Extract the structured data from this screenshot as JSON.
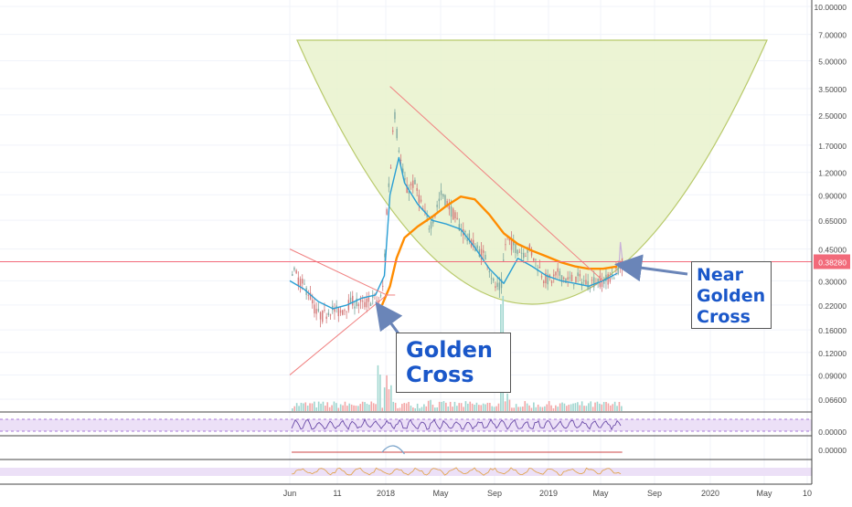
{
  "chart_data": {
    "type": "line",
    "y_scale": "log",
    "ylim": [
      0.05,
      10.0
    ],
    "y_ticks": [
      "10.00000",
      "7.00000",
      "5.00000",
      "3.50000",
      "2.50000",
      "1.70000",
      "1.20000",
      "0.90000",
      "0.65000",
      "0.45000",
      "0.30000",
      "0.22000",
      "0.16000",
      "0.12000",
      "0.09000",
      "0.06600"
    ],
    "x_ticks": [
      "Jun",
      "11",
      "2018",
      "May",
      "Sep",
      "2019",
      "May",
      "Sep",
      "2020",
      "May",
      "10"
    ],
    "price_marker": {
      "value": 0.3828,
      "label": "0.38280",
      "color": "#f26a7a"
    },
    "series": [
      {
        "name": "",
        "color": "#2a9fd4",
        "x": [
          "2017-06",
          "2017-07",
          "2017-08",
          "2017-09",
          "2017-10",
          "2017-11",
          "2017-12",
          "2017-12-20",
          "2018-01",
          "2018-01-20",
          "2018-02",
          "2018-03",
          "2018-04",
          "2018-05",
          "2018-06",
          "2018-07",
          "2018-08",
          "2018-09",
          "2018-10",
          "2018-11",
          "2018-12",
          "2019-01",
          "2019-02",
          "2019-03",
          "2019-04",
          "2019-05"
        ],
        "values": [
          0.3,
          0.27,
          0.23,
          0.21,
          0.22,
          0.24,
          0.25,
          0.32,
          0.9,
          1.45,
          1.05,
          0.8,
          0.65,
          0.62,
          0.58,
          0.46,
          0.35,
          0.29,
          0.4,
          0.36,
          0.32,
          0.3,
          0.29,
          0.28,
          0.3,
          0.33
        ]
      },
      {
        "name": "",
        "color": "#ff8c00",
        "x": [
          "2017-12-15",
          "2018-01",
          "2018-01-15",
          "2018-02",
          "2018-03",
          "2018-04",
          "2018-05",
          "2018-06",
          "2018-07",
          "2018-08",
          "2018-09",
          "2018-10",
          "2018-11",
          "2018-12",
          "2019-01",
          "2019-02",
          "2019-03",
          "2019-04",
          "2019-05"
        ],
        "values": [
          0.22,
          0.28,
          0.4,
          0.52,
          0.6,
          0.68,
          0.78,
          0.88,
          0.85,
          0.7,
          0.55,
          0.48,
          0.44,
          0.41,
          0.38,
          0.36,
          0.35,
          0.35,
          0.36
        ]
      }
    ],
    "trendlines": [
      {
        "color": "#f08080",
        "from": {
          "x": "2017-06",
          "y": 0.45
        },
        "to": {
          "x": "2017-12-25",
          "y": 0.25
        }
      },
      {
        "color": "#f08080",
        "from": {
          "x": "2017-06",
          "y": 0.09
        },
        "to": {
          "x": "2017-12-25",
          "y": 0.25
        }
      },
      {
        "color": "#f08080",
        "from": {
          "x": "2018-01",
          "y": 3.6
        },
        "to": {
          "x": "2019-04",
          "y": 0.3
        }
      }
    ],
    "annotations": [
      {
        "lines": [
          "Golden",
          "Cross"
        ],
        "color": "#1a57c9",
        "at": "2017-12"
      },
      {
        "lines": [
          "Near",
          "Golden",
          "Cross"
        ],
        "color": "#1a57c9",
        "at": "2019-05"
      }
    ],
    "indicator_panels": [
      {
        "tick_label": "0.00000"
      },
      {
        "tick_label": "0.00000"
      },
      {
        "tick_label": ""
      }
    ],
    "grid": true,
    "legend": "none"
  },
  "colors": {
    "background": "#ffffff",
    "grid": "#f0f3fa",
    "axis_text": "#4a4a4a",
    "cup_fill": "#e9f2cc",
    "cup_stroke": "#b8c96a",
    "candle_up": "#7fa8a0",
    "candle_down": "#d47a7a",
    "volume_up": "#9fd6cf",
    "volume_down": "#f3a7a7",
    "rsi_band": "#ece0f7",
    "rsi_line": "#6a4aa8"
  }
}
